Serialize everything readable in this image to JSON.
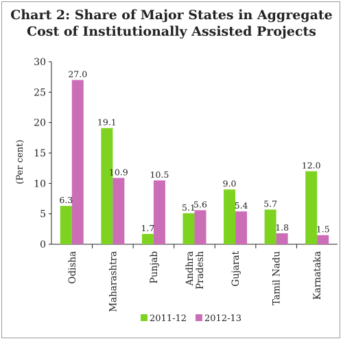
{
  "chart_data": {
    "type": "bar",
    "title_lines": [
      "Chart 2: Share of Major States in Aggregate",
      "Cost of Institutionally Assisted Projects"
    ],
    "ylabel": "(Per cent)",
    "xlabel": "",
    "ylim": [
      0,
      30
    ],
    "yticks": [
      0,
      5,
      10,
      15,
      20,
      25,
      30
    ],
    "grid": false,
    "legend_position": "bottom-center",
    "categories": [
      "Odisha",
      "Maharashtra",
      "Punjab",
      "Andhra Pradesh",
      "Gujarat",
      "Tamil Nadu",
      "Karnataka"
    ],
    "category_label_lines": [
      [
        "Odisha"
      ],
      [
        "Maharashtra"
      ],
      [
        "Punjab"
      ],
      [
        "Andhra",
        "Pradesh"
      ],
      [
        "Gujarat"
      ],
      [
        "Tamil Nadu"
      ],
      [
        "Karnataka"
      ]
    ],
    "series": [
      {
        "name": "2011-12",
        "color": "#7ed321",
        "values": [
          6.3,
          19.1,
          1.7,
          5.1,
          9.0,
          5.7,
          12.0
        ],
        "labels": [
          "6.3",
          "19.1",
          "1.7",
          "5.1",
          "9.0",
          "5.7",
          "12.0"
        ]
      },
      {
        "name": "2012-13",
        "color": "#cc6db8",
        "values": [
          27.0,
          10.9,
          10.5,
          5.6,
          5.4,
          1.8,
          1.5
        ],
        "labels": [
          "27.0",
          "10.9",
          "10.5",
          "5.6",
          "5.4",
          "1.8",
          "1.5"
        ]
      }
    ]
  }
}
